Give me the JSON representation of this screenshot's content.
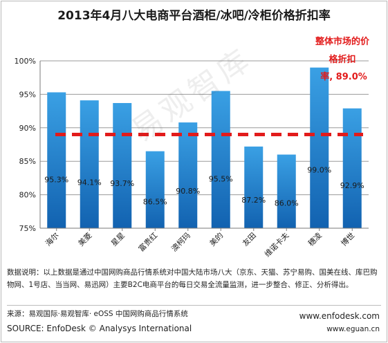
{
  "title": "2013年4月八大电商平台酒柜/冰吧/冷柜价格折扣率",
  "chart_data": {
    "type": "bar",
    "categories": [
      "海尔",
      "美菱",
      "星星",
      "富贵红",
      "澳柯玛",
      "美的",
      "友田",
      "维诺卡夫",
      "穗凌",
      "博世"
    ],
    "values": [
      95.3,
      94.1,
      93.7,
      86.5,
      90.8,
      95.5,
      87.2,
      86.0,
      99.0,
      92.9
    ],
    "value_labels": [
      "95.3%",
      "94.1%",
      "93.7%",
      "86.5%",
      "90.8%",
      "95.5%",
      "87.2%",
      "86.0%",
      "99.0%",
      "92.9%"
    ],
    "yticks": [
      "75%",
      "80%",
      "85%",
      "90%",
      "95%",
      "100%"
    ],
    "ylim": [
      75,
      100
    ],
    "grid": true,
    "reference_line": {
      "value": 89.0,
      "label": "整体市场的价格折扣率, 89.0%",
      "color": "#e21b1b"
    },
    "bar_color_top": "#3aa0e4",
    "bar_color_bottom": "#1262b0"
  },
  "reference_label_lines": [
    "整体市场的价",
    "格折扣",
    "率, 89.0%"
  ],
  "watermark": "易观智库",
  "note": "数据说明：以上数据是通过中国网购商品行情系统对中国大陆市场八大（京东、天猫、苏宁易购、国美在线、库巴购物网、1号店、当当网、易迅网）主要B2C电商平台的每日交易全流量监测，进一步整合、修正、分析得出。",
  "source_cn": "来源：易观国际·易观智库· eOSS 中国网购商品行情系统",
  "source_en": "SOURCE: EnfoDesk © Analysys International",
  "url1": "www.enfodesk.com",
  "url2": "www.eguan.cn"
}
